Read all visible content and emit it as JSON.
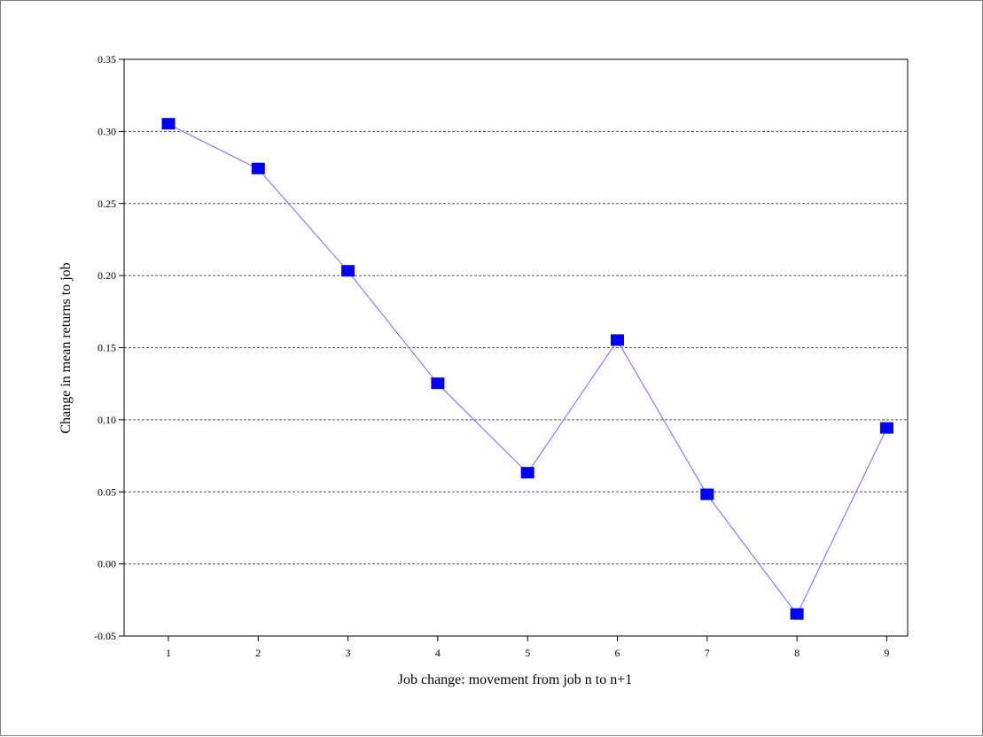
{
  "chart_data": {
    "type": "line",
    "title": "",
    "xlabel": "Job change: movement from job n to n+1",
    "ylabel": "Change in mean returns to job",
    "x": [
      1,
      2,
      3,
      4,
      5,
      6,
      7,
      8,
      9
    ],
    "x_tick_labels": [
      "1",
      "2",
      "3",
      "4",
      "5",
      "6",
      "7",
      "8",
      "9"
    ],
    "y_ticks": [
      -0.05,
      0.0,
      0.05,
      0.1,
      0.15,
      0.2,
      0.25,
      0.3,
      0.35
    ],
    "y_tick_labels": [
      "-0.05",
      "0.00",
      "0.05",
      "0.10",
      "0.15",
      "0.20",
      "0.25",
      "0.30",
      "0.35"
    ],
    "ylim": [
      -0.05,
      0.35
    ],
    "grid": "horizontal-dashed",
    "legend": "none",
    "series": [
      {
        "values": [
          0.305,
          0.274,
          0.203,
          0.125,
          0.063,
          0.155,
          0.048,
          -0.035,
          0.094
        ],
        "line_color": "#8080ff",
        "marker_color": "#0000ff",
        "marker": "square"
      }
    ]
  }
}
